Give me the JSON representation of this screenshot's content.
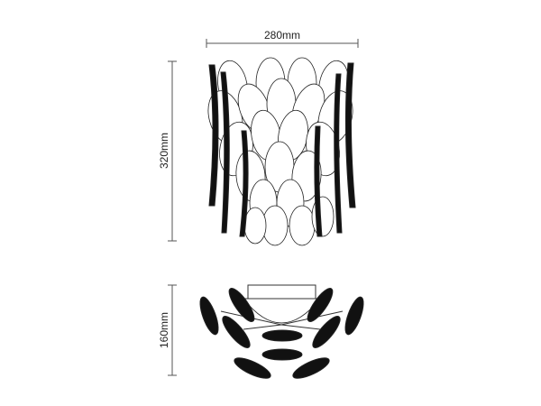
{
  "drawing": {
    "front_view": {
      "width_label": "280mm",
      "height_label": "320mm"
    },
    "top_view": {
      "depth_label": "160mm"
    }
  }
}
